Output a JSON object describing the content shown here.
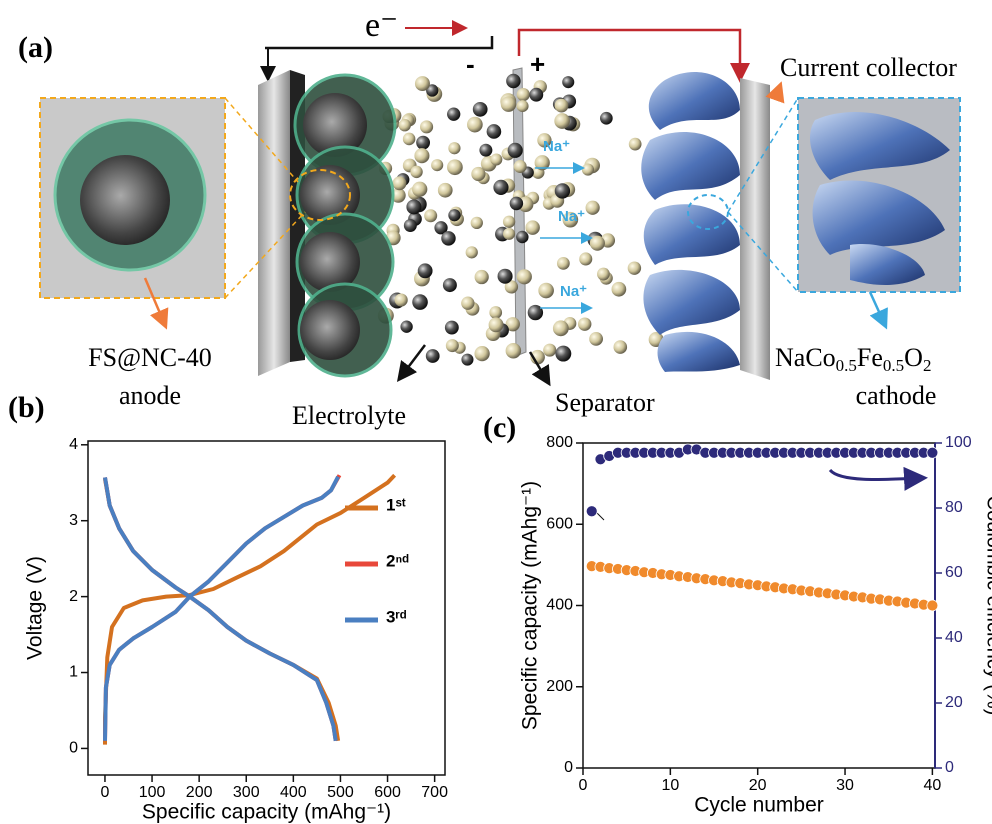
{
  "panel_a": {
    "label": "(a)",
    "electron": "e⁻",
    "minus": "-",
    "plus": "+",
    "current_collector": "Current collector",
    "na_ions": [
      "Na⁺",
      "Na⁺",
      "Na⁺"
    ],
    "anode_name": "FS@NC-40",
    "anode_word": "anode",
    "electrolyte": "Electrolyte",
    "separator": "Separator",
    "cathode_formula": [
      "NaCo",
      "0.5",
      "Fe",
      "0.5",
      "O",
      "2"
    ],
    "cathode_word": "cathode"
  },
  "chart_data": [
    {
      "type": "line",
      "panel": "(b)",
      "x_label": "Specific capacity (mAhg⁻¹)",
      "y_label": "Voltage (V)",
      "xlim": [
        -36,
        722
      ],
      "ylim": [
        -0.35,
        4.05
      ],
      "xticks": [
        0,
        100,
        200,
        300,
        400,
        500,
        600,
        700
      ],
      "yticks": [
        0,
        1,
        2,
        3,
        4
      ],
      "series": [
        {
          "name": "1ˢᵗ",
          "color": "#d4711f",
          "x": [
            0,
            10,
            30,
            60,
            100,
            150,
            180,
            220,
            260,
            300,
            350,
            400,
            450,
            475,
            490,
            495,
            null,
            0,
            0,
            5,
            15,
            40,
            80,
            130,
            180,
            230,
            280,
            330,
            380,
            430,
            450,
            500,
            550,
            600,
            615
          ],
          "values": [
            3.55,
            3.2,
            2.9,
            2.6,
            2.35,
            2.12,
            2.0,
            1.82,
            1.6,
            1.42,
            1.25,
            1.1,
            0.92,
            0.6,
            0.3,
            0.1,
            null,
            0.05,
            0.4,
            1.2,
            1.6,
            1.85,
            1.95,
            2.0,
            2.02,
            2.1,
            2.25,
            2.4,
            2.6,
            2.85,
            2.95,
            3.1,
            3.3,
            3.5,
            3.6
          ]
        },
        {
          "name": "2ⁿᵈ",
          "color": "#e8483a",
          "x": [
            0,
            10,
            30,
            60,
            100,
            150,
            180,
            220,
            260,
            300,
            350,
            400,
            450,
            470,
            485,
            490,
            null,
            0,
            2,
            10,
            30,
            60,
            100,
            150,
            180,
            220,
            260,
            300,
            330,
            340,
            380,
            420,
            460,
            480,
            498
          ],
          "values": [
            3.57,
            3.2,
            2.9,
            2.6,
            2.35,
            2.12,
            2.0,
            1.82,
            1.6,
            1.42,
            1.25,
            1.1,
            0.9,
            0.6,
            0.3,
            0.1,
            null,
            0.1,
            0.8,
            1.1,
            1.3,
            1.45,
            1.6,
            1.8,
            2.0,
            2.2,
            2.45,
            2.7,
            2.85,
            2.9,
            3.05,
            3.2,
            3.3,
            3.4,
            3.6
          ]
        },
        {
          "name": "3ʳᵈ",
          "color": "#4a7fc1",
          "x": [
            0,
            10,
            30,
            60,
            100,
            150,
            180,
            220,
            260,
            300,
            350,
            400,
            450,
            470,
            485,
            490,
            null,
            0,
            2,
            10,
            30,
            60,
            100,
            150,
            180,
            220,
            260,
            300,
            330,
            340,
            380,
            420,
            460,
            480,
            495
          ],
          "values": [
            3.57,
            3.2,
            2.9,
            2.6,
            2.35,
            2.12,
            2.0,
            1.82,
            1.6,
            1.42,
            1.25,
            1.1,
            0.9,
            0.6,
            0.3,
            0.1,
            null,
            0.1,
            0.8,
            1.1,
            1.3,
            1.45,
            1.6,
            1.8,
            2.0,
            2.2,
            2.45,
            2.7,
            2.85,
            2.9,
            3.05,
            3.2,
            3.3,
            3.4,
            3.58
          ]
        }
      ]
    },
    {
      "type": "scatter",
      "panel": "(c)",
      "x_label": "Cycle number",
      "y_label": "Specific capacity (mAhg⁻¹)",
      "y2_label": "Coulombic efficiency (%)",
      "x": [
        1,
        2,
        3,
        4,
        5,
        6,
        7,
        8,
        9,
        10,
        11,
        12,
        13,
        14,
        15,
        16,
        17,
        18,
        19,
        20,
        21,
        22,
        23,
        24,
        25,
        26,
        27,
        28,
        29,
        30,
        31,
        32,
        33,
        34,
        35,
        36,
        37,
        38,
        39,
        40
      ],
      "xlim": [
        0,
        40.3
      ],
      "xticks": [
        0,
        10,
        20,
        30,
        40
      ],
      "ylim": [
        0,
        800
      ],
      "yticks": [
        0,
        200,
        400,
        600,
        800
      ],
      "y2lim": [
        0,
        100
      ],
      "y2ticks": [
        0,
        20,
        40,
        60,
        80,
        100
      ],
      "series": [
        {
          "color": "#f08a2c",
          "values": [
            497,
            495,
            492,
            490,
            487,
            485,
            482,
            480,
            477,
            475,
            472,
            470,
            467,
            465,
            462,
            460,
            457,
            455,
            452,
            450,
            447,
            445,
            442,
            440,
            437,
            435,
            432,
            430,
            427,
            425,
            422,
            420,
            417,
            415,
            412,
            410,
            407,
            405,
            402,
            400
          ]
        },
        {
          "color": "#2d2a7a",
          "axis": "y2",
          "values": [
            79,
            95,
            96,
            97,
            97,
            97,
            97,
            97,
            97,
            97,
            97,
            98,
            98,
            97,
            97,
            97,
            97,
            97,
            97,
            97,
            97,
            97,
            97,
            97,
            97,
            97,
            97,
            97,
            97,
            97,
            97,
            97,
            97,
            97,
            97,
            97,
            97,
            97,
            97,
            97
          ]
        }
      ]
    }
  ]
}
